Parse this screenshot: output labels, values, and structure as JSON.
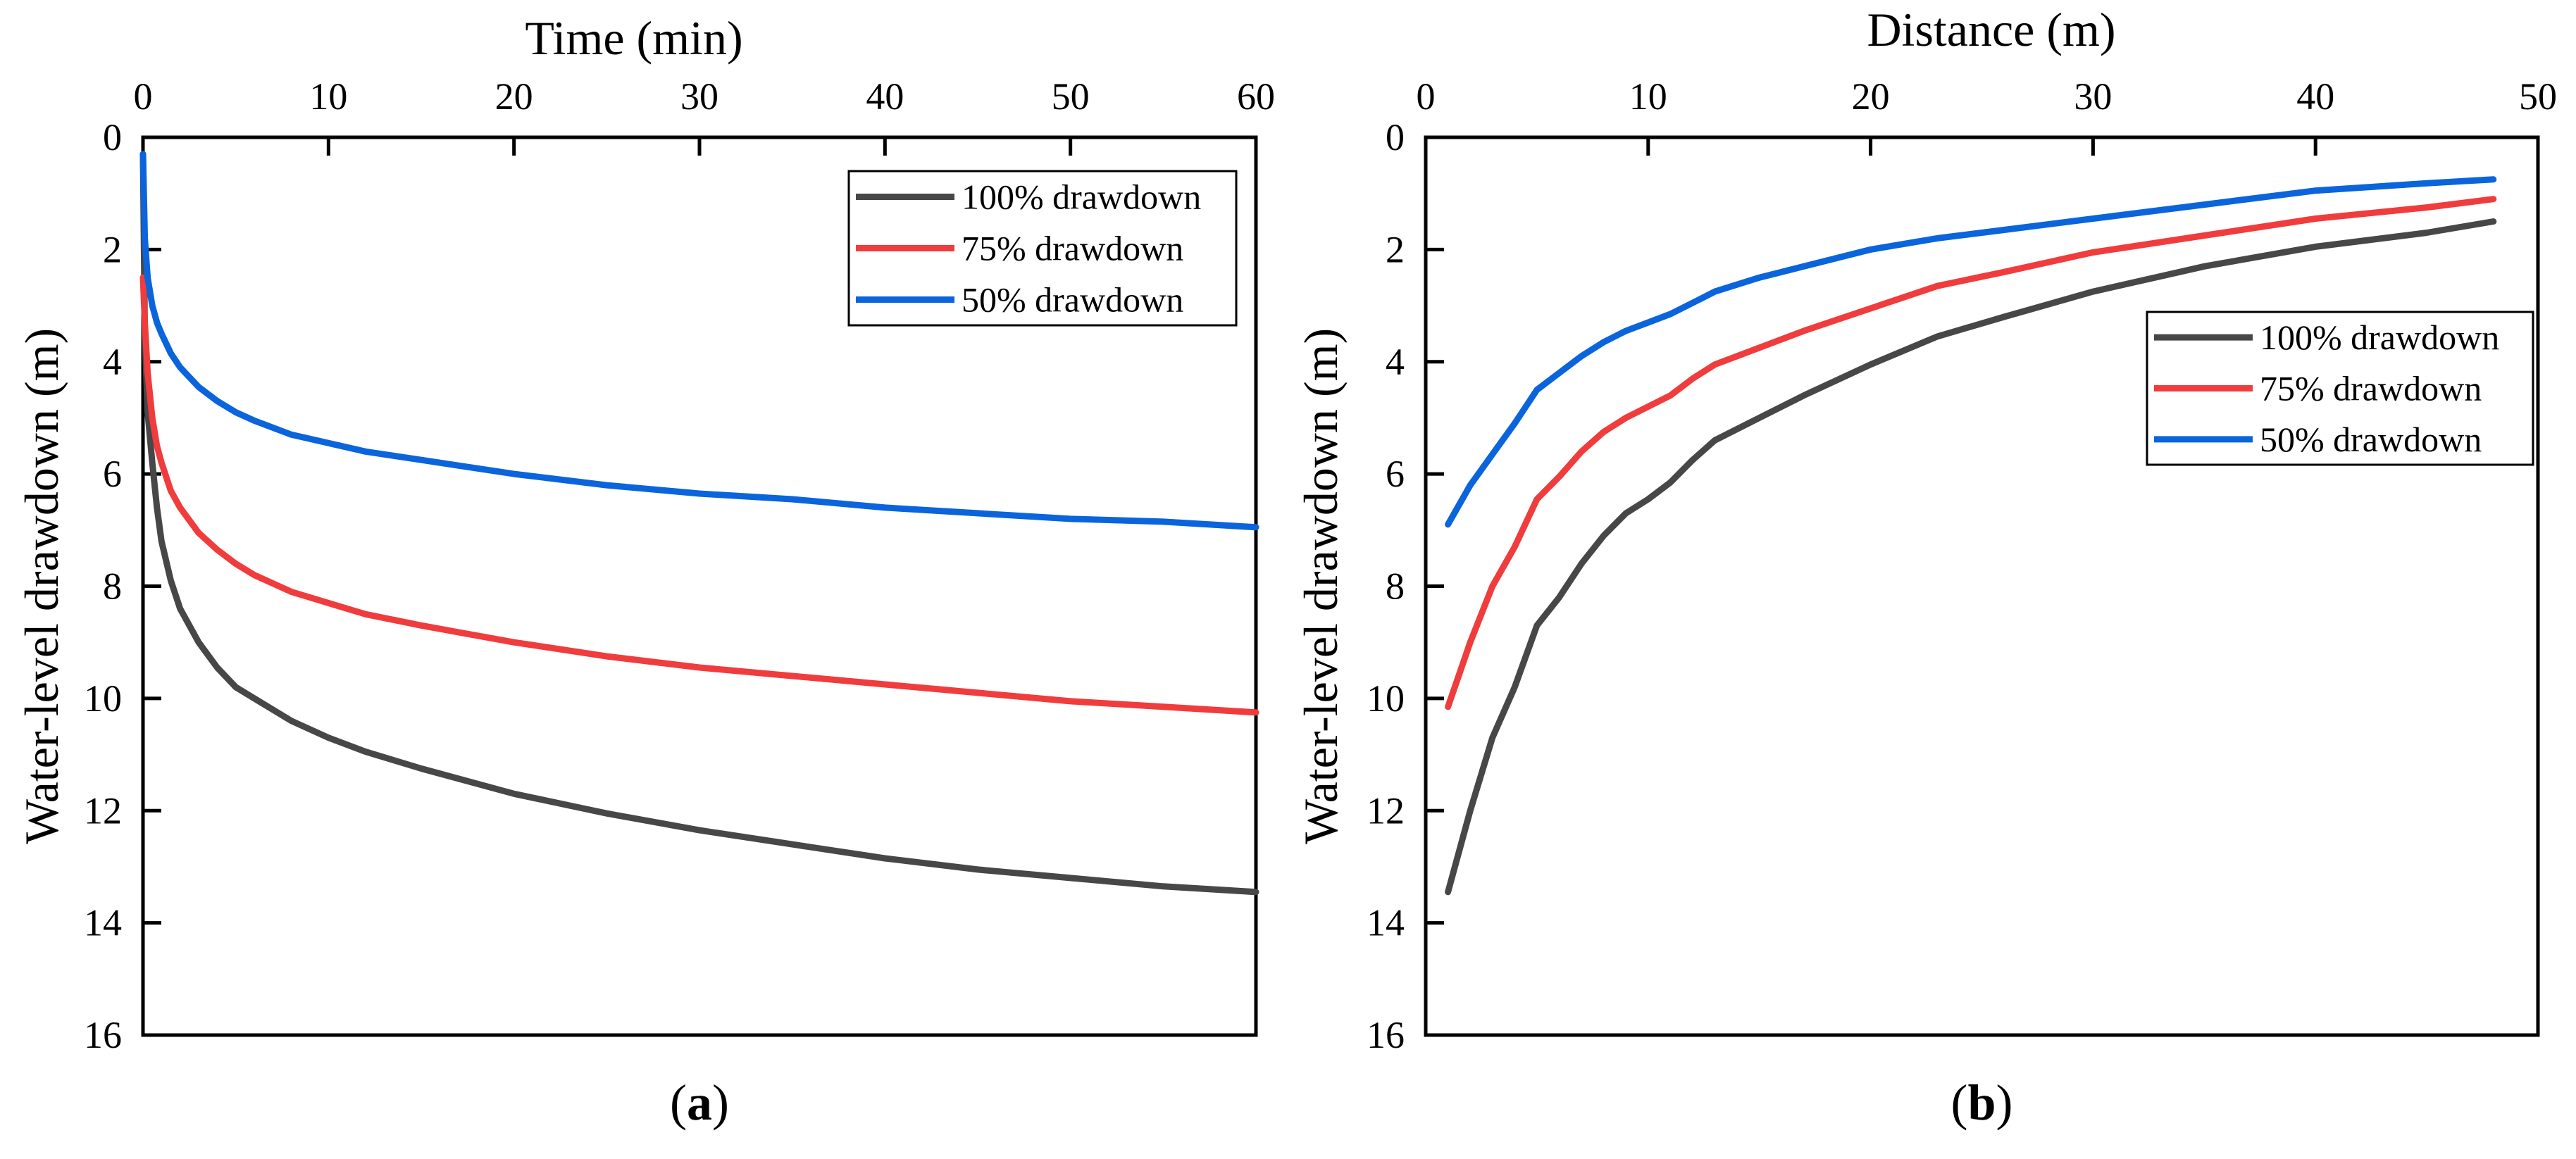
{
  "chart_data": [
    {
      "type": "line",
      "panel_label": "a",
      "xlabel": "Time (min)",
      "ylabel": "Water-level drawdown (m)",
      "xlim": [
        0,
        60
      ],
      "ylim": [
        0,
        16
      ],
      "y_inverted": true,
      "x_axis_position": "top",
      "xticks": [
        "0",
        "10",
        "20",
        "30",
        "40",
        "50",
        "60"
      ],
      "yticks": [
        "0",
        "2",
        "4",
        "6",
        "8",
        "10",
        "12",
        "14",
        "16"
      ],
      "grid": false,
      "legend_position": "top-right",
      "series": [
        {
          "name": "100% drawdown",
          "color": "#474747",
          "x": [
            0,
            0.1,
            0.25,
            0.5,
            0.75,
            1,
            1.5,
            2,
            3,
            4,
            5,
            6,
            8,
            10,
            12,
            15,
            20,
            25,
            30,
            35,
            40,
            45,
            50,
            55,
            60
          ],
          "y": [
            0.3,
            3.5,
            4.9,
            5.8,
            6.6,
            7.2,
            7.9,
            8.4,
            9.0,
            9.45,
            9.8,
            10.0,
            10.4,
            10.7,
            10.95,
            11.25,
            11.7,
            12.05,
            12.35,
            12.6,
            12.85,
            13.05,
            13.2,
            13.35,
            13.45
          ]
        },
        {
          "name": "75% drawdown",
          "color": "#f03c3c",
          "x": [
            0,
            0.1,
            0.25,
            0.5,
            0.75,
            1,
            1.5,
            2,
            3,
            4,
            5,
            6,
            8,
            10,
            12,
            15,
            20,
            25,
            30,
            35,
            40,
            45,
            50,
            55,
            60
          ],
          "y": [
            2.5,
            3.3,
            4.2,
            5.0,
            5.5,
            5.8,
            6.3,
            6.6,
            7.05,
            7.35,
            7.6,
            7.8,
            8.1,
            8.3,
            8.5,
            8.7,
            9.0,
            9.25,
            9.45,
            9.6,
            9.75,
            9.9,
            10.05,
            10.15,
            10.25
          ]
        },
        {
          "name": "50% drawdown",
          "color": "#0a64dc",
          "x": [
            0,
            0.1,
            0.25,
            0.5,
            0.75,
            1,
            1.5,
            2,
            3,
            4,
            5,
            6,
            8,
            10,
            12,
            15,
            20,
            25,
            30,
            35,
            40,
            45,
            50,
            55,
            60
          ],
          "y": [
            0.3,
            1.8,
            2.5,
            3.0,
            3.3,
            3.5,
            3.85,
            4.1,
            4.45,
            4.7,
            4.9,
            5.05,
            5.3,
            5.45,
            5.6,
            5.75,
            6.0,
            6.2,
            6.35,
            6.45,
            6.6,
            6.7,
            6.8,
            6.85,
            6.95
          ]
        }
      ]
    },
    {
      "type": "line",
      "panel_label": "b",
      "xlabel": "Distance (m)",
      "ylabel": "Water-level drawdown (m)",
      "xlim": [
        0,
        50
      ],
      "ylim": [
        0,
        16
      ],
      "y_inverted": true,
      "x_axis_position": "top",
      "xticks": [
        "0",
        "10",
        "20",
        "30",
        "40",
        "50"
      ],
      "yticks": [
        "0",
        "2",
        "4",
        "6",
        "8",
        "10",
        "12",
        "14",
        "16"
      ],
      "grid": false,
      "legend_position": "upper-right",
      "series": [
        {
          "name": "100% drawdown",
          "color": "#474747",
          "x": [
            1,
            2,
            3,
            4,
            5,
            6,
            7,
            8,
            9,
            10,
            11,
            12,
            13,
            15,
            17,
            20,
            23,
            26,
            30,
            35,
            40,
            45,
            48
          ],
          "y": [
            13.45,
            12.0,
            10.7,
            9.8,
            8.7,
            8.2,
            7.6,
            7.1,
            6.7,
            6.45,
            6.15,
            5.75,
            5.4,
            5.0,
            4.6,
            4.05,
            3.55,
            3.2,
            2.75,
            2.3,
            1.95,
            1.7,
            1.5
          ]
        },
        {
          "name": "75% drawdown",
          "color": "#f03c3c",
          "x": [
            1,
            2,
            3,
            4,
            5,
            6,
            7,
            8,
            9,
            10,
            11,
            12,
            13,
            15,
            17,
            20,
            23,
            26,
            30,
            35,
            40,
            45,
            48
          ],
          "y": [
            10.15,
            9.0,
            8.0,
            7.3,
            6.45,
            6.05,
            5.6,
            5.25,
            5.0,
            4.8,
            4.6,
            4.3,
            4.05,
            3.75,
            3.45,
            3.05,
            2.65,
            2.4,
            2.05,
            1.75,
            1.45,
            1.25,
            1.1
          ]
        },
        {
          "name": "50% drawdown",
          "color": "#0a64dc",
          "x": [
            1,
            2,
            3,
            4,
            5,
            6,
            7,
            8,
            9,
            10,
            11,
            12,
            13,
            15,
            17,
            20,
            23,
            26,
            30,
            35,
            40,
            45,
            48
          ],
          "y": [
            6.9,
            6.2,
            5.65,
            5.1,
            4.5,
            4.2,
            3.9,
            3.65,
            3.45,
            3.3,
            3.15,
            2.95,
            2.75,
            2.5,
            2.3,
            2.0,
            1.8,
            1.65,
            1.45,
            1.2,
            0.95,
            0.82,
            0.75
          ]
        }
      ]
    }
  ]
}
